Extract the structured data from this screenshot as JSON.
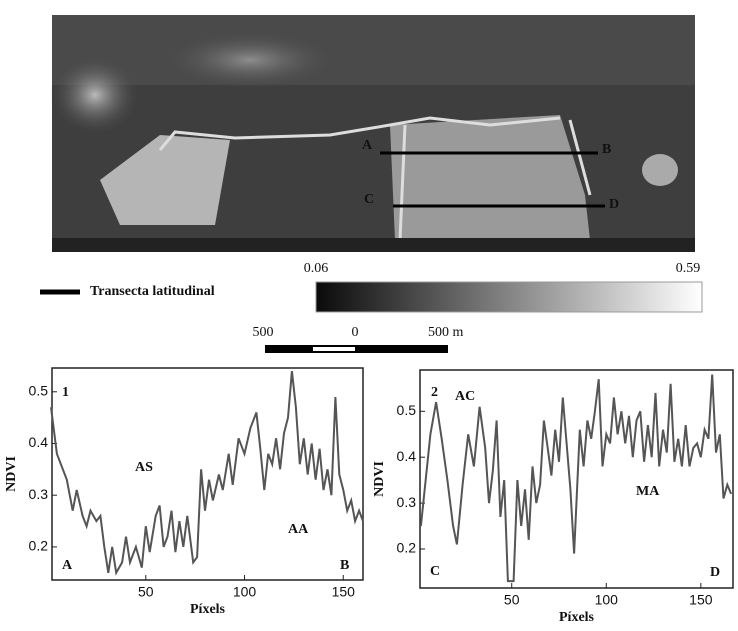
{
  "image": {
    "transect_labels": [
      "A",
      "B",
      "C",
      "D"
    ],
    "legend": "Transecta latitudinal",
    "colorbar": {
      "range": [
        0.06,
        0.59
      ]
    },
    "scale_bar": [
      "500",
      "0",
      "500 m"
    ]
  },
  "chart_data": [
    {
      "type": "line",
      "x_label": "Píxels",
      "y_label": "NDVI",
      "annotations": [
        "1",
        "AS",
        "AA",
        "A",
        "B"
      ],
      "color": "#555555",
      "x": [
        2,
        5,
        10,
        13,
        15,
        18,
        20,
        22,
        25,
        27,
        29,
        31,
        33,
        35,
        38,
        40,
        42,
        45,
        48,
        50,
        52,
        55,
        57,
        59,
        61,
        63,
        65,
        67,
        69,
        71,
        74,
        76,
        78,
        80,
        82,
        84,
        87,
        89,
        92,
        94,
        97,
        100,
        103,
        106,
        108,
        110,
        112,
        114,
        116,
        118,
        120,
        122,
        124,
        126,
        128,
        130,
        132,
        134,
        136,
        138,
        140,
        142,
        144,
        146,
        148,
        150,
        152,
        154,
        156,
        158,
        160
      ],
      "values": [
        0.47,
        0.38,
        0.33,
        0.27,
        0.31,
        0.26,
        0.24,
        0.27,
        0.25,
        0.26,
        0.2,
        0.15,
        0.2,
        0.15,
        0.17,
        0.22,
        0.17,
        0.2,
        0.16,
        0.24,
        0.19,
        0.26,
        0.28,
        0.2,
        0.22,
        0.27,
        0.19,
        0.25,
        0.2,
        0.26,
        0.17,
        0.18,
        0.35,
        0.27,
        0.33,
        0.29,
        0.34,
        0.31,
        0.38,
        0.32,
        0.41,
        0.38,
        0.43,
        0.46,
        0.39,
        0.31,
        0.38,
        0.36,
        0.41,
        0.35,
        0.42,
        0.45,
        0.54,
        0.47,
        0.36,
        0.41,
        0.34,
        0.4,
        0.33,
        0.39,
        0.31,
        0.35,
        0.3,
        0.49,
        0.34,
        0.31,
        0.27,
        0.29,
        0.25,
        0.27,
        0.25
      ],
      "xlim": [
        2.5,
        160
      ],
      "ylim": [
        0.136,
        0.546
      ],
      "xticks": [
        50,
        100,
        150
      ],
      "yticks": [
        0.2,
        0.3,
        0.4,
        0.5
      ]
    },
    {
      "type": "line",
      "x_label": "Píxels",
      "y_label": "NDVI",
      "annotations": [
        "2",
        "AC",
        "MA",
        "C",
        "D"
      ],
      "color": "#555555",
      "x": [
        2,
        4,
        7,
        10,
        13,
        16,
        19,
        21,
        24,
        27,
        30,
        33,
        36,
        38,
        40,
        42,
        44,
        46,
        48,
        51,
        53,
        55,
        57,
        59,
        61,
        63,
        65,
        67,
        69,
        71,
        73,
        75,
        77,
        79,
        81,
        83,
        86,
        88,
        90,
        92,
        94,
        96,
        98,
        100,
        102,
        104,
        106,
        108,
        110,
        112,
        114,
        116,
        118,
        120,
        122,
        124,
        126,
        128,
        130,
        132,
        134,
        136,
        138,
        140,
        142,
        144,
        146,
        148,
        150,
        152,
        154,
        156,
        158,
        160,
        162,
        164,
        166
      ],
      "values": [
        0.25,
        0.33,
        0.45,
        0.52,
        0.44,
        0.35,
        0.25,
        0.21,
        0.34,
        0.45,
        0.38,
        0.51,
        0.42,
        0.3,
        0.37,
        0.48,
        0.27,
        0.35,
        0.13,
        0.13,
        0.35,
        0.25,
        0.33,
        0.22,
        0.38,
        0.3,
        0.34,
        0.48,
        0.42,
        0.36,
        0.46,
        0.39,
        0.53,
        0.43,
        0.33,
        0.19,
        0.46,
        0.38,
        0.48,
        0.44,
        0.5,
        0.57,
        0.38,
        0.45,
        0.43,
        0.53,
        0.45,
        0.5,
        0.43,
        0.49,
        0.4,
        0.48,
        0.5,
        0.39,
        0.47,
        0.4,
        0.54,
        0.38,
        0.46,
        0.41,
        0.56,
        0.39,
        0.44,
        0.38,
        0.47,
        0.38,
        0.42,
        0.43,
        0.4,
        0.46,
        0.44,
        0.58,
        0.41,
        0.45,
        0.31,
        0.34,
        0.32
      ],
      "xlim": [
        1.5,
        167
      ],
      "ylim": [
        0.115,
        0.59
      ],
      "xticks": [
        50,
        100,
        150
      ],
      "yticks": [
        0.2,
        0.3,
        0.4,
        0.5
      ]
    }
  ]
}
